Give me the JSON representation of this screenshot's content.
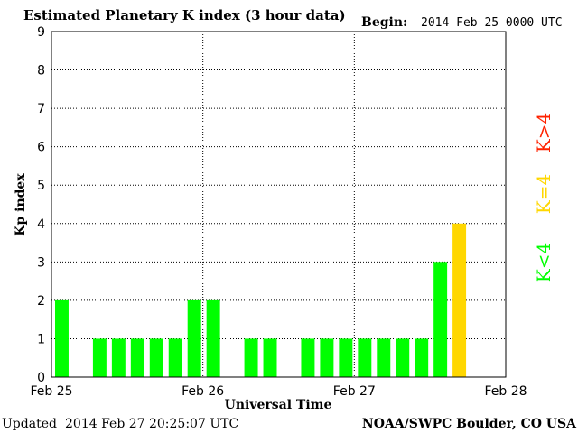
{
  "header": {
    "title": "Estimated Planetary K index (3 hour data)",
    "begin_label": "Begin:",
    "begin_value": "2014 Feb 25 0000 UTC"
  },
  "footer": {
    "updated_label": "Updated",
    "updated_value": "2014 Feb 27 20:25:07 UTC",
    "source": "NOAA/SWPC Boulder, CO USA"
  },
  "legend": {
    "greater": "K>4",
    "equal": "K=4",
    "less": "K<4"
  },
  "colors": {
    "low": "#00ff00",
    "equal": "#ffd700",
    "high": "#ff2200"
  },
  "chart_data": {
    "type": "bar",
    "xlabel": "Universal Time",
    "ylabel": "Kp index",
    "ylim": [
      0,
      9
    ],
    "yticks": [
      0,
      1,
      2,
      3,
      4,
      5,
      6,
      7,
      8,
      9
    ],
    "xtick_labels": [
      "Feb 25",
      "Feb 26",
      "Feb 27",
      "Feb 28"
    ],
    "grid": true,
    "series": [
      {
        "values": [
          2,
          0,
          1,
          1,
          1,
          1,
          1,
          2,
          2,
          0,
          1,
          1,
          0,
          1,
          1,
          1,
          1,
          1,
          1,
          1,
          3,
          4
        ]
      }
    ]
  }
}
